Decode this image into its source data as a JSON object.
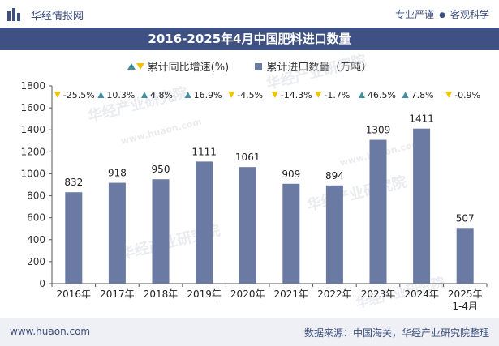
{
  "header": {
    "brand": "华经情报网",
    "tags": [
      "专业严谨",
      "客观科学"
    ],
    "tag_separator": "●"
  },
  "title": "2016-2025年4月中国肥料进口数量",
  "legend": {
    "growth_label": "累计同比增速(%)",
    "quantity_label": "累计进口数量（万吨）"
  },
  "colors": {
    "bar": "#6b7aa3",
    "up": "#3f8f9e",
    "down": "#f2c200",
    "title_bg": "#3f5182"
  },
  "chart_data": {
    "type": "bar",
    "title": "2016-2025年4月中国肥料进口数量",
    "categories": [
      "2016年",
      "2017年",
      "2018年",
      "2019年",
      "2020年",
      "2021年",
      "2022年",
      "2023年",
      "2024年",
      "2025年\n1-4月"
    ],
    "series": [
      {
        "name": "累计进口数量（万吨）",
        "values": [
          832,
          918,
          950,
          1111,
          1061,
          909,
          894,
          1309,
          1411,
          507
        ]
      },
      {
        "name": "累计同比增速(%)",
        "values": [
          -25.5,
          10.3,
          4.8,
          16.9,
          -4.5,
          -14.3,
          -1.7,
          46.5,
          7.8,
          -0.9
        ],
        "labels": [
          "-25.5%",
          "10.3%",
          "4.8%",
          "16.9%",
          "-4.5%",
          "-14.3%",
          "-1.7%",
          "46.5%",
          "7.8%",
          "-0.9%"
        ]
      }
    ],
    "ylim": [
      0,
      1800
    ],
    "yticks": [
      0,
      200,
      400,
      600,
      800,
      1000,
      1200,
      1400,
      1600,
      1800
    ],
    "xlabel": "",
    "ylabel": ""
  },
  "watermark": {
    "cn": "华经产业研究院",
    "url": "www.huaon.com"
  },
  "footer": {
    "website": "www.huaon.com",
    "source": "数据来源：中国海关，华经产业研究院整理"
  }
}
